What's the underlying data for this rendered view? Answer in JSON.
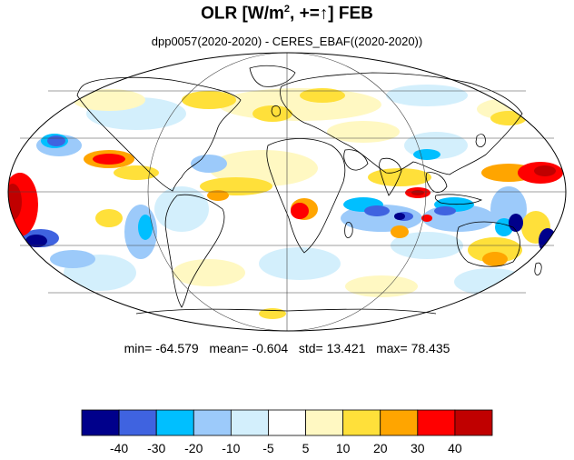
{
  "title": {
    "main": "OLR [W/m",
    "sup": "2",
    "rest": ", +=↑] FEB"
  },
  "subtitle": "dpp0057(2020-2020) - CERES_EBAF((2020-2020))",
  "stats": {
    "min_label": "min=",
    "min": "-64.579",
    "mean_label": "mean=",
    "mean": "-0.604",
    "std_label": "std=",
    "std": "13.421",
    "max_label": "max=",
    "max": "78.435"
  },
  "colorbar": {
    "colors": [
      "#00008b",
      "#3f63e0",
      "#00bfff",
      "#9ccafa",
      "#d3effc",
      "#ffffff",
      "#fff8c2",
      "#ffe03a",
      "#ffa500",
      "#ff0000",
      "#c00000"
    ],
    "tick_labels": [
      "-40",
      "-30",
      "-20",
      "-10",
      "-5",
      "5",
      "10",
      "20",
      "30",
      "40"
    ]
  },
  "map": {
    "projection": "mollweide",
    "grid": true
  }
}
